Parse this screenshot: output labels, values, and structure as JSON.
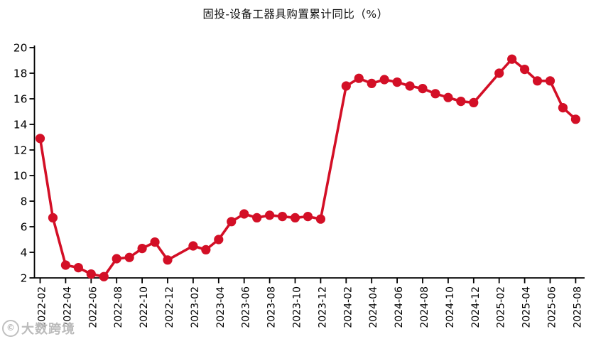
{
  "title": "固投-设备工器具购置累计同比（%）",
  "watermark": {
    "logo": "©",
    "text": "大数跨境"
  },
  "colors": {
    "series": "#d30f26",
    "axis": "#000000",
    "title_text": "#111111",
    "background": "#ffffff"
  },
  "chart_data": {
    "type": "line",
    "title": "固投-设备工器具购置累计同比（%）",
    "x": [
      "2022-02",
      "2022-03",
      "2022-04",
      "2022-05",
      "2022-06",
      "2022-07",
      "2022-08",
      "2022-09",
      "2022-10",
      "2022-11",
      "2022-12",
      "2023-02",
      "2023-03",
      "2023-04",
      "2023-05",
      "2023-06",
      "2023-07",
      "2023-08",
      "2023-09",
      "2023-10",
      "2023-11",
      "2023-12",
      "2024-02",
      "2024-03",
      "2024-04",
      "2024-05",
      "2024-06",
      "2024-07",
      "2024-08",
      "2024-09",
      "2024-10",
      "2024-11",
      "2024-12",
      "2025-02",
      "2025-03",
      "2025-04",
      "2025-05",
      "2025-06",
      "2025-07",
      "2025-08"
    ],
    "values": [
      12.9,
      6.7,
      3.0,
      2.8,
      2.3,
      2.1,
      3.5,
      3.6,
      4.3,
      4.8,
      3.4,
      4.5,
      4.2,
      5.0,
      6.4,
      7.0,
      6.7,
      6.9,
      6.8,
      6.7,
      6.8,
      6.6,
      17.0,
      17.6,
      17.2,
      17.5,
      17.3,
      17.0,
      16.8,
      16.4,
      16.1,
      15.8,
      15.7,
      18.0,
      19.1,
      18.3,
      17.4,
      17.4,
      15.3,
      14.4
    ],
    "xtick_labels": [
      "2022-02",
      "2022-04",
      "2022-06",
      "2022-08",
      "2022-10",
      "2022-12",
      "2023-02",
      "2023-04",
      "2023-06",
      "2023-08",
      "2023-10",
      "2023-12",
      "2024-02",
      "2024-04",
      "2024-06",
      "2024-08",
      "2024-10",
      "2024-12",
      "2025-02",
      "2025-04",
      "2025-06",
      "2025-08"
    ],
    "ylim": [
      2,
      20
    ],
    "ytick_step": 2,
    "grid": false,
    "legend": "none",
    "marker": "circle",
    "xlabel": "",
    "ylabel": ""
  }
}
